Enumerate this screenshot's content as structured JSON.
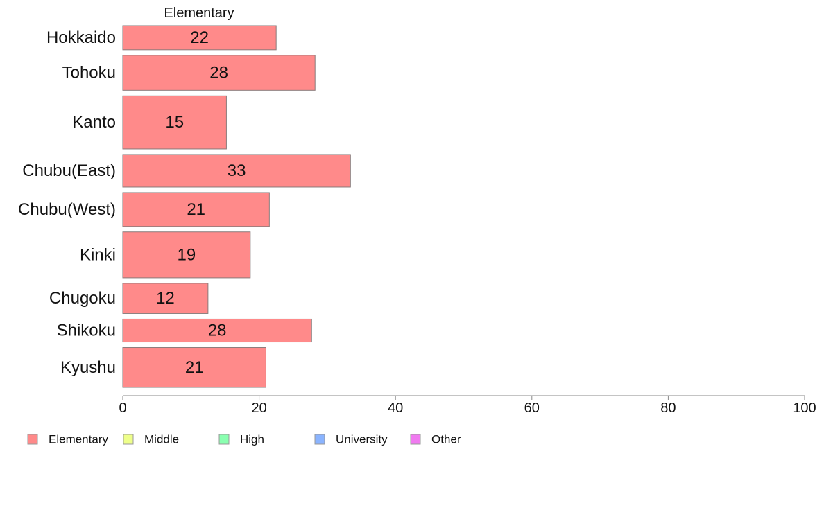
{
  "chart_data": {
    "type": "bar",
    "orientation": "horizontal",
    "title": "Elementary",
    "categories": [
      "Hokkaido",
      "Tohoku",
      "Kanto",
      "Chubu(East)",
      "Chubu(West)",
      "Kinki",
      "Chugoku",
      "Shikoku",
      "Kyushu"
    ],
    "series": [
      {
        "name": "Elementary",
        "values": [
          22,
          28,
          15,
          33,
          21,
          19,
          12,
          28,
          21
        ],
        "color": "#ff8a8a"
      }
    ],
    "exact_values": [
      22.5,
      28.2,
      15.2,
      33.4,
      21.5,
      18.7,
      12.5,
      27.7,
      21.0
    ],
    "category_weights": [
      1.0,
      1.45,
      2.2,
      1.35,
      1.4,
      1.9,
      1.25,
      0.95,
      1.65
    ],
    "xlim": [
      0,
      100
    ],
    "xticks": [
      0,
      20,
      40,
      60,
      80,
      100
    ],
    "xlabel": "",
    "ylabel": "",
    "grid": false,
    "legend": {
      "position": "bottom-left",
      "items": [
        {
          "label": "Elementary",
          "color": "#ff8a8a"
        },
        {
          "label": "Middle",
          "color": "#eeff8a"
        },
        {
          "label": "High",
          "color": "#8affb0"
        },
        {
          "label": "University",
          "color": "#8ab4ff"
        },
        {
          "label": "Other",
          "color": "#f07af0"
        }
      ]
    }
  }
}
